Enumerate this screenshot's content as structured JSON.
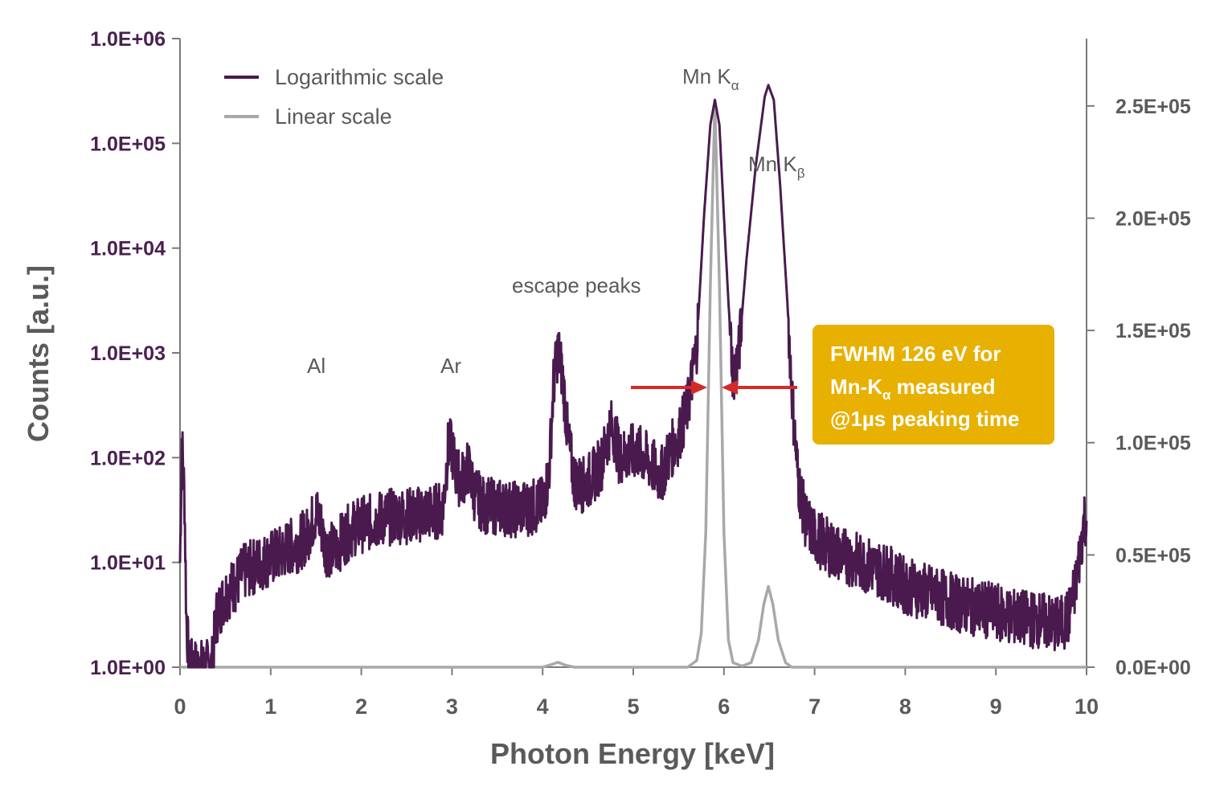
{
  "chart_data": {
    "type": "line",
    "xlabel": "Photon Energy [keV]",
    "ylabel": "Counts [a.u.]",
    "xlim": [
      0,
      10
    ],
    "x_ticks": [
      "0",
      "1",
      "2",
      "3",
      "4",
      "5",
      "6",
      "7",
      "8",
      "9",
      "10"
    ],
    "y_left": {
      "scale": "log",
      "lim": [
        1,
        1000000
      ],
      "ticks": [
        "1.0E+00",
        "1.0E+01",
        "1.0E+02",
        "1.0E+03",
        "1.0E+04",
        "1.0E+05",
        "1.0E+06"
      ]
    },
    "y_right": {
      "scale": "linear",
      "lim": [
        0,
        280000
      ],
      "ticks": [
        "0.0E+00",
        "0.5E+05",
        "1.0E+05",
        "1.5E+05",
        "2.0E+05",
        "2.5E+05"
      ]
    },
    "grid": false,
    "legend": {
      "position": "top-left"
    },
    "series": [
      {
        "name": "Logarithmic scale",
        "color": "#4a1a4f",
        "axis": "left",
        "scale": "log",
        "points": [
          [
            0.0,
            10
          ],
          [
            0.02,
            150
          ],
          [
            0.05,
            40
          ],
          [
            0.07,
            3
          ],
          [
            0.1,
            1
          ],
          [
            0.35,
            1
          ],
          [
            0.4,
            3
          ],
          [
            0.5,
            5
          ],
          [
            0.6,
            6
          ],
          [
            0.7,
            8
          ],
          [
            0.8,
            9
          ],
          [
            0.9,
            10
          ],
          [
            1.0,
            11
          ],
          [
            1.1,
            12
          ],
          [
            1.2,
            14
          ],
          [
            1.3,
            15
          ],
          [
            1.4,
            18
          ],
          [
            1.5,
            30
          ],
          [
            1.55,
            24
          ],
          [
            1.6,
            14
          ],
          [
            1.7,
            13
          ],
          [
            1.8,
            17
          ],
          [
            1.9,
            21
          ],
          [
            2.0,
            23
          ],
          [
            2.1,
            24
          ],
          [
            2.2,
            26
          ],
          [
            2.3,
            27
          ],
          [
            2.4,
            28
          ],
          [
            2.5,
            28
          ],
          [
            2.6,
            28
          ],
          [
            2.7,
            30
          ],
          [
            2.8,
            30
          ],
          [
            2.9,
            33
          ],
          [
            2.96,
            130
          ],
          [
            3.0,
            120
          ],
          [
            3.05,
            70
          ],
          [
            3.1,
            60
          ],
          [
            3.18,
            80
          ],
          [
            3.25,
            45
          ],
          [
            3.35,
            35
          ],
          [
            3.5,
            34
          ],
          [
            3.7,
            32
          ],
          [
            3.9,
            34
          ],
          [
            4.0,
            35
          ],
          [
            4.07,
            70
          ],
          [
            4.12,
            500
          ],
          [
            4.17,
            1100
          ],
          [
            4.22,
            600
          ],
          [
            4.28,
            150
          ],
          [
            4.35,
            60
          ],
          [
            4.45,
            55
          ],
          [
            4.55,
            65
          ],
          [
            4.65,
            90
          ],
          [
            4.75,
            200
          ],
          [
            4.8,
            160
          ],
          [
            4.85,
            100
          ],
          [
            4.95,
            110
          ],
          [
            5.05,
            115
          ],
          [
            5.15,
            95
          ],
          [
            5.25,
            75
          ],
          [
            5.3,
            65
          ],
          [
            5.4,
            110
          ],
          [
            5.5,
            160
          ],
          [
            5.6,
            300
          ],
          [
            5.7,
            1200
          ],
          [
            5.78,
            20000
          ],
          [
            5.85,
            150000
          ],
          [
            5.9,
            260000
          ],
          [
            5.95,
            150000
          ],
          [
            6.0,
            20000
          ],
          [
            6.05,
            3000
          ],
          [
            6.1,
            600
          ],
          [
            6.16,
            900
          ],
          [
            6.25,
            8000
          ],
          [
            6.35,
            60000
          ],
          [
            6.45,
            280000
          ],
          [
            6.49,
            360000
          ],
          [
            6.55,
            260000
          ],
          [
            6.62,
            40000
          ],
          [
            6.7,
            3000
          ],
          [
            6.76,
            300
          ],
          [
            6.82,
            60
          ],
          [
            6.9,
            25
          ],
          [
            7.0,
            18
          ],
          [
            7.2,
            13
          ],
          [
            7.5,
            10
          ],
          [
            7.8,
            8
          ],
          [
            8.0,
            6
          ],
          [
            8.3,
            5
          ],
          [
            8.6,
            4
          ],
          [
            8.9,
            3.5
          ],
          [
            9.2,
            3
          ],
          [
            9.5,
            2.8
          ],
          [
            9.7,
            2.5
          ],
          [
            9.8,
            3
          ],
          [
            9.88,
            6
          ],
          [
            9.94,
            15
          ],
          [
            9.98,
            28
          ],
          [
            10.0,
            25
          ]
        ]
      },
      {
        "name": "Linear scale",
        "color": "#a8a8a8",
        "axis": "right",
        "scale": "linear",
        "points": [
          [
            0.0,
            0
          ],
          [
            4.0,
            0
          ],
          [
            4.1,
            1200
          ],
          [
            4.17,
            2200
          ],
          [
            4.25,
            900
          ],
          [
            4.35,
            0
          ],
          [
            5.6,
            0
          ],
          [
            5.7,
            3000
          ],
          [
            5.75,
            15000
          ],
          [
            5.8,
            60000
          ],
          [
            5.85,
            170000
          ],
          [
            5.9,
            252000
          ],
          [
            5.95,
            170000
          ],
          [
            6.0,
            60000
          ],
          [
            6.05,
            12000
          ],
          [
            6.1,
            2000
          ],
          [
            6.2,
            500
          ],
          [
            6.3,
            2000
          ],
          [
            6.38,
            12000
          ],
          [
            6.44,
            28000
          ],
          [
            6.49,
            36000
          ],
          [
            6.54,
            28000
          ],
          [
            6.6,
            12000
          ],
          [
            6.68,
            2000
          ],
          [
            6.75,
            0
          ],
          [
            10.0,
            0
          ]
        ]
      }
    ],
    "annotations": {
      "al": "Al",
      "ar": "Ar",
      "escape": "escape peaks",
      "mn_ka_main": "Mn K",
      "mn_ka_sub": "α",
      "mn_kb_main": "Mn K",
      "mn_kb_sub": "β"
    },
    "callout": {
      "line1": "FWHM 126 eV for",
      "line2_main": "Mn-K",
      "line2_sub": "α",
      "line2_rest": " measured",
      "line3": "@1µs peaking time",
      "box_color": "#e8b000",
      "arrow_color": "#d42a2a"
    }
  }
}
